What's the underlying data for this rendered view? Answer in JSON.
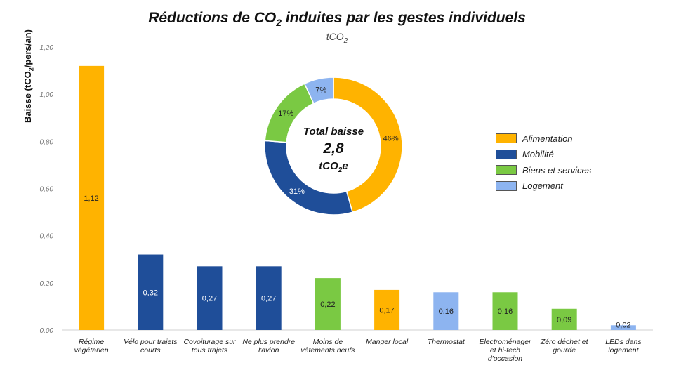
{
  "chart_data": [
    {
      "type": "bar",
      "title": "Réductions de CO2 induites par les gestes individuels",
      "title_parts": [
        "Réductions de CO",
        "2",
        " induites par les gestes individuels"
      ],
      "subtitle_parts": [
        "tCO",
        "2"
      ],
      "ylabel": "Baisse (tCO2/pers/an)",
      "ylabel_parts": [
        "Baisse (tCO",
        "2",
        "/pers/an)"
      ],
      "ylim": [
        0,
        1.2
      ],
      "yticks": [
        "0,00",
        "0,20",
        "0,40",
        "0,60",
        "0,80",
        "1,00",
        "1,20"
      ],
      "grid": false,
      "categories": [
        [
          "Régime",
          "végétarien"
        ],
        [
          "Vélo pour trajets",
          "courts"
        ],
        [
          "Covoiturage sur",
          "tous trajets"
        ],
        [
          "Ne plus prendre",
          "l'avion"
        ],
        [
          "Moins de",
          "vêtements neufs"
        ],
        [
          "Manger local"
        ],
        [
          "Thermostat"
        ],
        [
          "Electroménager",
          "et hi-tech",
          "d'occasion"
        ],
        [
          "Zéro déchet et",
          "gourde"
        ],
        [
          "LEDs dans",
          "logement"
        ]
      ],
      "values": [
        1.12,
        0.32,
        0.27,
        0.27,
        0.22,
        0.17,
        0.16,
        0.16,
        0.09,
        0.02
      ],
      "value_labels": [
        "1,12",
        "0,32",
        "0,27",
        "0,27",
        "0,22",
        "0,17",
        "0,16",
        "0,16",
        "0,09",
        "0,02"
      ],
      "groups": [
        "Alimentation",
        "Mobilité",
        "Mobilité",
        "Mobilité",
        "Biens et services",
        "Alimentation",
        "Logement",
        "Biens et services",
        "Biens et services",
        "Logement"
      ],
      "legend": {
        "position": "right",
        "entries": [
          {
            "name": "Alimentation",
            "color": "#FFB300"
          },
          {
            "name": "Mobilité",
            "color": "#1F4E99"
          },
          {
            "name": "Biens et services",
            "color": "#7AC943"
          },
          {
            "name": "Logement",
            "color": "#8DB4F0"
          }
        ]
      }
    },
    {
      "type": "pie",
      "donut": true,
      "center_text": {
        "line1": "Total baisse",
        "line2": "2,8",
        "line3_parts": [
          "tCO",
          "2",
          "e"
        ]
      },
      "slices": [
        {
          "name": "Alimentation",
          "value": 46,
          "label": "46%",
          "color": "#FFB300"
        },
        {
          "name": "Mobilité",
          "value": 31,
          "label": "31%",
          "color": "#1F4E99"
        },
        {
          "name": "Biens et services",
          "value": 17,
          "label": "17%",
          "color": "#7AC943"
        },
        {
          "name": "Logement",
          "value": 7,
          "label": "7%",
          "color": "#8DB4F0"
        }
      ]
    }
  ]
}
